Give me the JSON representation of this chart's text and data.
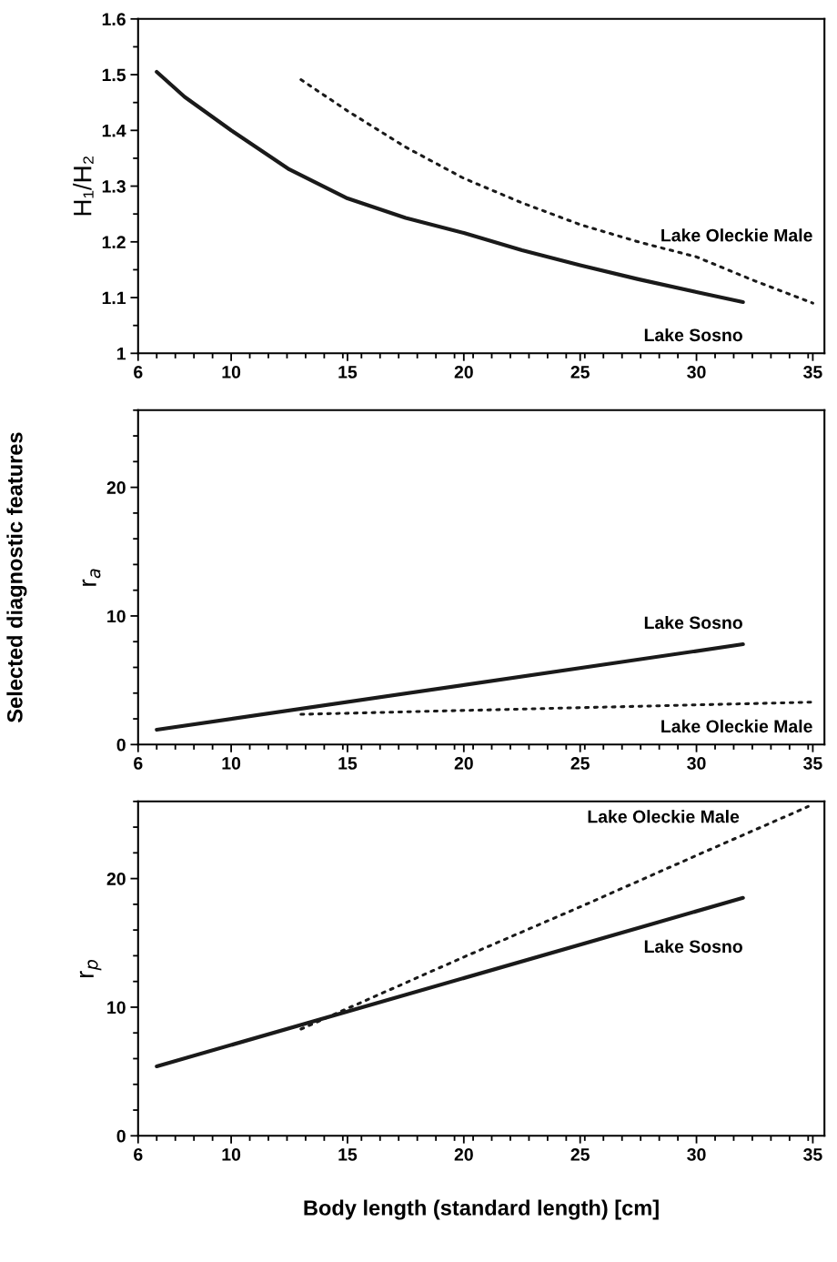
{
  "chart_data": [
    {
      "type": "line",
      "ylabel": "H₁/H₂",
      "xlim": [
        6,
        35.5
      ],
      "xticks": [
        6,
        10,
        15,
        20,
        25,
        30,
        35
      ],
      "ylim": [
        1,
        1.6
      ],
      "yticks": [
        {
          "value": 1,
          "label": "1"
        },
        1.1,
        1.2,
        1.3,
        1.4,
        1.5,
        1.6
      ],
      "grid": false,
      "legend": false,
      "series": [
        {
          "name": "Lake Sosno",
          "color": "#1a1a1a",
          "line_style": "solid",
          "x": [
            6.8,
            8,
            10,
            12.5,
            15,
            17.5,
            20,
            22.5,
            25,
            27.5,
            30,
            32
          ],
          "values": [
            1.505,
            1.46,
            1.4,
            1.33,
            1.278,
            1.243,
            1.216,
            1.185,
            1.158,
            1.133,
            1.11,
            1.092
          ]
        },
        {
          "name": "Lake Oleckie Male",
          "color": "#1a1a1a",
          "line_style": "dotted",
          "x": [
            13,
            15,
            17.5,
            20,
            22.5,
            25,
            27.5,
            30,
            32.5,
            35
          ],
          "values": [
            1.491,
            1.435,
            1.37,
            1.314,
            1.27,
            1.231,
            1.2,
            1.173,
            1.13,
            1.09
          ]
        }
      ]
    },
    {
      "type": "line",
      "ylabel": "r$_{a}$",
      "annotations": [
        "Selected diagnostic features"
      ],
      "xlim": [
        6,
        35.5
      ],
      "xticks": [
        6,
        10,
        15,
        20,
        25,
        30,
        35
      ],
      "ylim": [
        0,
        26
      ],
      "yticks": [
        0,
        10,
        20
      ],
      "grid": false,
      "legend": false,
      "series": [
        {
          "name": "Lake Sosno",
          "color": "#1a1a1a",
          "line_style": "solid",
          "x": [
            6.8,
            32
          ],
          "values": [
            1.15,
            7.8
          ]
        },
        {
          "name": "Lake Oleckie Male",
          "color": "#1a1a1a",
          "line_style": "dotted",
          "x": [
            13,
            35
          ],
          "values": [
            2.35,
            3.3
          ]
        }
      ]
    },
    {
      "type": "line",
      "ylabel": "r$_{p}$",
      "xlabel": "Body length (standard length) [cm]",
      "xlim": [
        6,
        35.5
      ],
      "xticks": [
        6,
        10,
        15,
        20,
        25,
        30,
        35
      ],
      "ylim": [
        0,
        26
      ],
      "yticks": [
        0,
        10,
        20
      ],
      "grid": false,
      "legend": false,
      "series": [
        {
          "name": "Lake Sosno",
          "color": "#1a1a1a",
          "line_style": "solid",
          "x": [
            6.8,
            32
          ],
          "values": [
            5.4,
            18.5
          ]
        },
        {
          "name": "Lake Oleckie Male",
          "color": "#1a1a1a",
          "line_style": "dotted",
          "x": [
            13,
            15,
            20,
            25,
            30,
            34.8
          ],
          "values": [
            8.3,
            9.9,
            13.9,
            17.8,
            21.8,
            25.6
          ]
        }
      ]
    }
  ]
}
